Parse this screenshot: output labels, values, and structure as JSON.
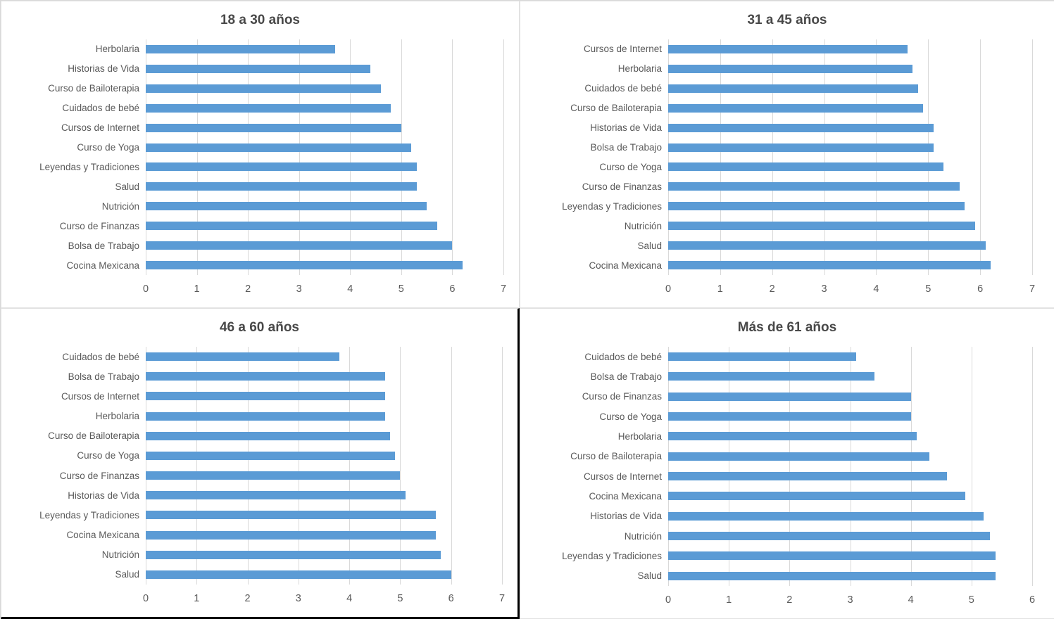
{
  "colors": {
    "bar": "#5b9bd5",
    "gridline": "#d9d9d9",
    "text": "#595959",
    "title": "#484848",
    "panel_border": "#d9d9d9",
    "selected_chart_border": "#000000"
  },
  "chart_data": [
    {
      "type": "bar",
      "orientation": "horizontal",
      "title": "18 a 30 años",
      "categories": [
        "Herbolaria",
        "Historias de Vida",
        "Curso de Bailoterapia",
        "Cuidados de bebé",
        "Cursos de Internet",
        "Curso de Yoga",
        "Leyendas y Tradiciones",
        "Salud",
        "Nutrición",
        "Curso de Finanzas",
        "Bolsa de Trabajo",
        "Cocina Mexicana"
      ],
      "values": [
        3.7,
        4.4,
        4.6,
        4.8,
        5.0,
        5.2,
        5.3,
        5.3,
        5.5,
        5.7,
        6.0,
        6.2
      ],
      "xlim": [
        0,
        7
      ],
      "xticks": [
        0,
        1,
        2,
        3,
        4,
        5,
        6,
        7
      ],
      "grid": true,
      "legend": false,
      "selected": false
    },
    {
      "type": "bar",
      "orientation": "horizontal",
      "title": "31 a 45 años",
      "categories": [
        "Cursos de Internet",
        "Herbolaria",
        "Cuidados de bebé",
        "Curso de Bailoterapia",
        "Historias de Vida",
        "Bolsa de Trabajo",
        "Curso de Yoga",
        "Curso de Finanzas",
        "Leyendas y Tradiciones",
        "Nutrición",
        "Salud",
        "Cocina Mexicana"
      ],
      "values": [
        4.6,
        4.7,
        4.8,
        4.9,
        5.1,
        5.1,
        5.3,
        5.6,
        5.7,
        5.9,
        6.1,
        6.2
      ],
      "xlim": [
        0,
        7
      ],
      "xticks": [
        0,
        1,
        2,
        3,
        4,
        5,
        6,
        7
      ],
      "grid": true,
      "legend": false,
      "selected": false
    },
    {
      "type": "bar",
      "orientation": "horizontal",
      "title": "46 a 60 años",
      "categories": [
        "Cuidados de bebé",
        "Bolsa de Trabajo",
        "Cursos de Internet",
        "Herbolaria",
        "Curso de Bailoterapia",
        "Curso de Yoga",
        "Curso de Finanzas",
        "Historias de Vida",
        "Leyendas y Tradiciones",
        "Cocina Mexicana",
        "Nutrición",
        "Salud"
      ],
      "values": [
        3.8,
        4.7,
        4.7,
        4.7,
        4.8,
        4.9,
        5.0,
        5.1,
        5.7,
        5.7,
        5.8,
        6.0
      ],
      "xlim": [
        0,
        7
      ],
      "xticks": [
        0,
        1,
        2,
        3,
        4,
        5,
        6,
        7
      ],
      "grid": true,
      "legend": false,
      "selected": true
    },
    {
      "type": "bar",
      "orientation": "horizontal",
      "title": "Más de 61 años",
      "categories": [
        "Cuidados de bebé",
        "Bolsa de Trabajo",
        "Curso de Finanzas",
        "Curso de Yoga",
        "Herbolaria",
        "Curso de Bailoterapia",
        "Cursos de Internet",
        "Cocina Mexicana",
        "Historias de Vida",
        "Nutrición",
        "Leyendas y Tradiciones",
        "Salud"
      ],
      "values": [
        3.1,
        3.4,
        4.0,
        4.0,
        4.1,
        4.3,
        4.6,
        4.9,
        5.2,
        5.3,
        5.4,
        5.4
      ],
      "xlim": [
        0,
        6
      ],
      "xticks": [
        0,
        1,
        2,
        3,
        4,
        5,
        6
      ],
      "grid": true,
      "legend": false,
      "selected": false
    }
  ]
}
